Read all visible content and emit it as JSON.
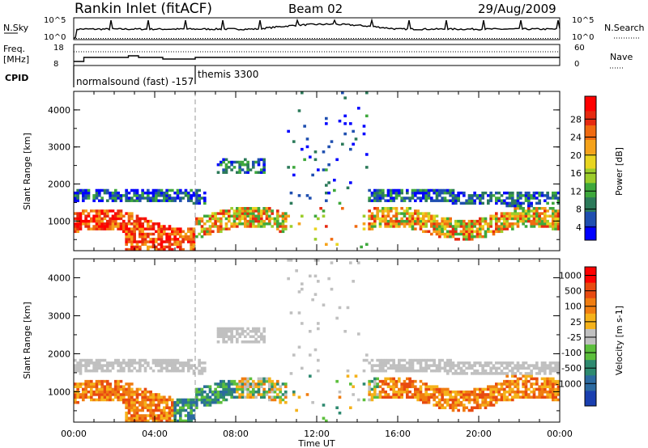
{
  "header": {
    "station": "Rankin Inlet (fitACF)",
    "beam": "Beam 02",
    "date": "29/Aug/2009"
  },
  "top_panels": {
    "nsky_label": "N.Sky",
    "nsky_ticks": [
      "10^5",
      "10^0"
    ],
    "nsearch_label": "N.Search",
    "nsearch_ticks": [
      "10^5",
      "10^0"
    ],
    "freq_label": "Freq.",
    "freq_unit": "[MHz]",
    "freq_ticks": [
      "18",
      "8"
    ],
    "nave_label": "Nave",
    "nave_ticks": [
      "60",
      "0"
    ],
    "cpid_label": "CPID",
    "cpid_segments": [
      {
        "label": "normalsound (fast) -157",
        "start_hour": 0,
        "end_hour": 6
      },
      {
        "label": "themis 3300",
        "start_hour": 6,
        "end_hour": 24
      }
    ]
  },
  "chart_data": [
    {
      "type": "heatmap",
      "name": "power",
      "ylabel": "Slant Range [km]",
      "xlabel": "",
      "xlim": [
        0,
        24
      ],
      "ylim": [
        200,
        4500
      ],
      "yticks": [
        "1000",
        "2000",
        "3000",
        "4000"
      ],
      "colorbar": {
        "label": "Power [dB]",
        "ticks": [
          "4",
          "8",
          "12",
          "16",
          "20",
          "24",
          "28"
        ],
        "colors": [
          "#0000ff",
          "#1f4fb0",
          "#2c7a5a",
          "#3ea83c",
          "#9ccd2a",
          "#e8d520",
          "#f5a21a",
          "#f06a10",
          "#e62a10",
          "#ff0000"
        ]
      }
    },
    {
      "type": "heatmap",
      "name": "velocity",
      "ylabel": "Slant Range [km]",
      "xlabel": "Time UT",
      "xlim": [
        0,
        24
      ],
      "ylim": [
        200,
        4500
      ],
      "yticks": [
        "1000",
        "2000",
        "3000",
        "4000"
      ],
      "xticks": [
        "00:00",
        "04:00",
        "08:00",
        "12:00",
        "16:00",
        "20:00",
        "00:00"
      ],
      "colorbar": {
        "label": "Velocity [m s-1]",
        "ticks": [
          "1000",
          "500",
          "100",
          "25",
          "-25",
          "-100",
          "-500",
          "-1000"
        ],
        "colors": [
          "#1a3fb0",
          "#2c6aa0",
          "#2e8a70",
          "#5cbf3c",
          "#c0c0c0",
          "#f5b21a",
          "#f07d10",
          "#e84a10",
          "#ff0000"
        ]
      }
    }
  ]
}
